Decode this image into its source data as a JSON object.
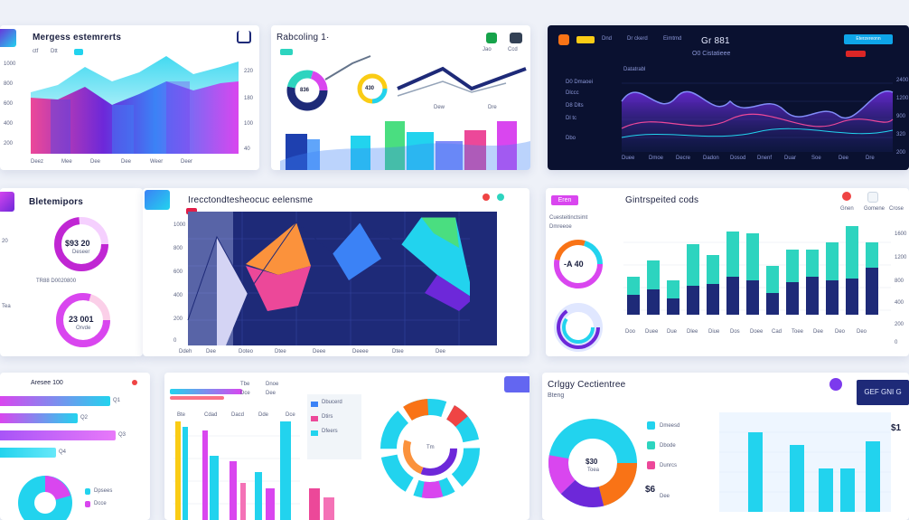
{
  "colors": {
    "cyan": "#22d3ee",
    "magenta": "#d946ef",
    "purple": "#7c3aed",
    "navy": "#1e2a78",
    "teal": "#2dd4bf",
    "pink": "#ec4899",
    "orange": "#fb923c",
    "background": "#eef1f8"
  },
  "panels": {
    "p1": {
      "title": "Mergess estemrerts",
      "legend": [
        "ctf",
        "Dtt"
      ],
      "y_ticks": [
        "1000",
        "800",
        "600",
        "400",
        "200"
      ],
      "right_ticks": [
        "220",
        "180",
        "100",
        "40"
      ],
      "x_ticks": [
        "Deez",
        "Mee",
        "Dee",
        "Dee",
        "Weer",
        "Deer"
      ]
    },
    "p2": {
      "title": "Rabcoling 1·",
      "badges": [
        "Jao",
        "Ccd"
      ],
      "donut_a": "836",
      "donut_b": "430",
      "labels": [
        "Dew",
        "Dre"
      ]
    },
    "p3": {
      "top_labels": [
        "Dnd",
        "Dr ckerd",
        "Eimtmd"
      ],
      "title": "Gr 881",
      "subtitle": "O0 Cistatieee",
      "button": "Eterzereonn",
      "legend_title": "Datatrabl",
      "legend": [
        "D0 Dmaoei",
        "Dlccc",
        "D8 Dlts",
        "Dl tc",
        "Dbo"
      ],
      "x_ticks": [
        "Duee",
        "Dmoe",
        "Decre",
        "Dadon",
        "Dosod",
        "Dnenf",
        "Duar",
        "Soe",
        "Dee",
        "Dre"
      ],
      "y_ticks": [
        "2400",
        "1200",
        "900",
        "320",
        "200"
      ]
    },
    "p4": {
      "title": "Bletemipors",
      "donut_a": "$93 20",
      "donut_a_sub": "Deseer",
      "donut_b": "23 001",
      "donut_b_sub": "Orvde",
      "caption": "TR88 D0020800",
      "side": [
        "20",
        "Tea"
      ]
    },
    "p5": {
      "title": "Irecctondtesheocuc eelensme",
      "y_ticks": [
        "1000",
        "800",
        "600",
        "400",
        "200",
        "0"
      ],
      "x_ticks": [
        "Ddeh",
        "Dee",
        "Doteo",
        "Dtee",
        "Deee",
        "Deeee",
        "Dtee",
        "Dee"
      ]
    },
    "p6": {
      "badge": "Eren",
      "title": "Gintrspeited cods",
      "labels": [
        "Cuesteitinctsimt",
        "Dmreeoe"
      ],
      "donut": "-A 40",
      "toolbar": [
        "Gnen",
        "Gomene",
        "Crose"
      ],
      "y_ticks": [
        "1600",
        "1200",
        "800",
        "400",
        "200",
        "0"
      ],
      "x_ticks": [
        "Doo",
        "Duee",
        "Due",
        "Dlee",
        "Diue",
        "Dos",
        "Doee",
        "Cad",
        "Toee",
        "Dee",
        "Deo",
        "Deo"
      ]
    },
    "p7": {
      "title": "Aresee 100",
      "bars": [
        {
          "label": "Q1",
          "value": 0.78
        },
        {
          "label": "Q2",
          "value": 0.55
        },
        {
          "label": "Q3",
          "value": 0.82
        },
        {
          "label": "Q4",
          "value": 0.4
        }
      ],
      "legend": [
        "Dpsees",
        "Dcce"
      ]
    },
    "p8": {
      "header": [
        "Tbe",
        "Dce",
        "Dee",
        "Dnoe"
      ],
      "x_ticks": [
        "Bte",
        "Cdad",
        "Dacd",
        "Dde",
        "Dce"
      ],
      "legend": [
        "Dbucerd",
        "Dtirs",
        "Dfeers"
      ],
      "ring_labels": [
        "Tm"
      ]
    },
    "p9": {
      "title": "Crlggy Cectientree",
      "subtitle": "Bteng",
      "donut": "$30",
      "donut_sub": "Toea",
      "legend": [
        "Dmeesd",
        "Dbode",
        "Dunrcs",
        "Dee"
      ],
      "legend_value": "$6",
      "button": "GEF GNI G",
      "right_value": "$1"
    }
  }
}
